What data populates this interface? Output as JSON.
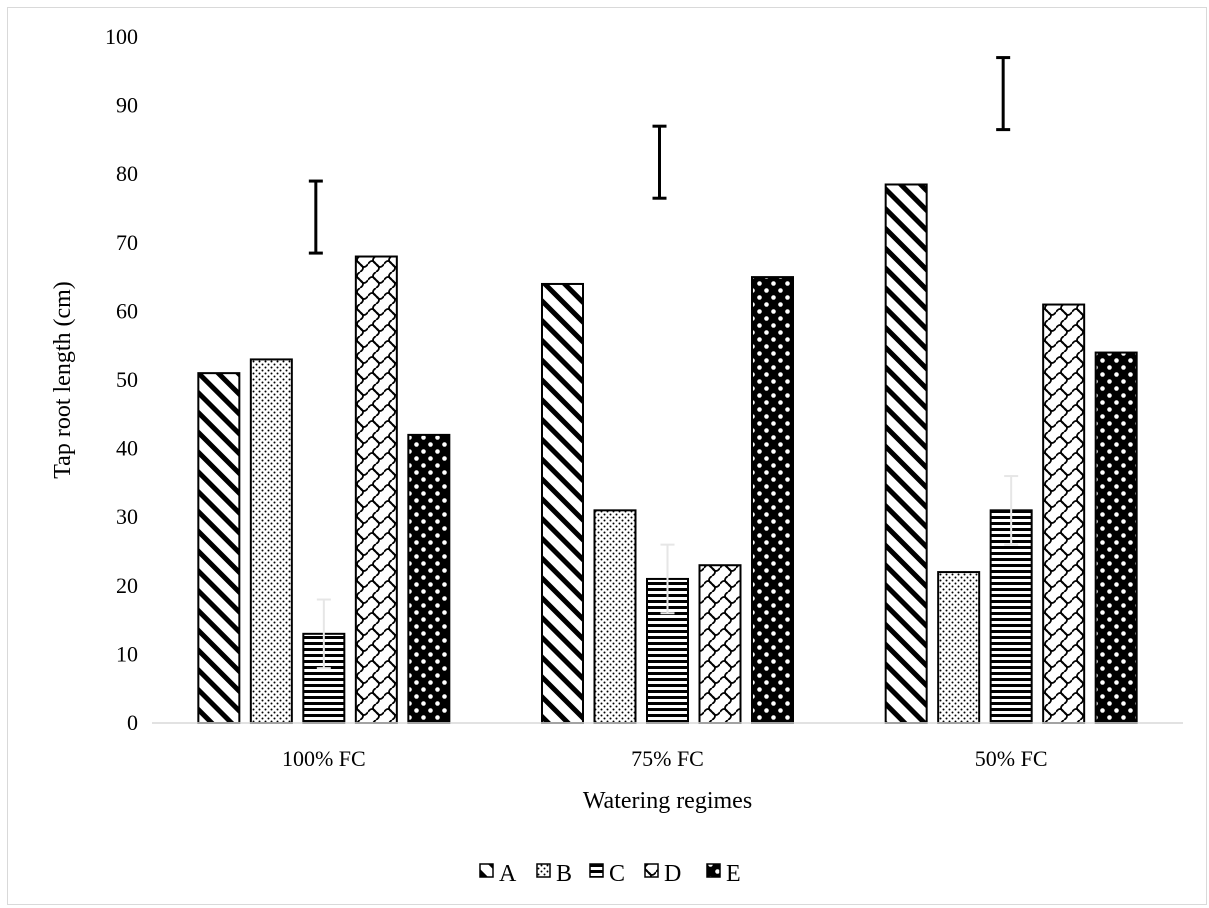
{
  "chart_data": {
    "type": "bar",
    "title": "",
    "xlabel": "Watering regimes",
    "ylabel": "Tap root length (cm)",
    "ylim": [
      0,
      100
    ],
    "yticks": [
      0,
      10,
      20,
      30,
      40,
      50,
      60,
      70,
      80,
      90,
      100
    ],
    "categories": [
      "100% FC",
      "75% FC",
      "50% FC"
    ],
    "series": [
      {
        "name": "A",
        "values": [
          51,
          64,
          78.5
        ],
        "pattern": "diagonal-stripes"
      },
      {
        "name": "B",
        "values": [
          53,
          31,
          22
        ],
        "pattern": "fine-dots"
      },
      {
        "name": "C",
        "values": [
          13,
          21,
          31
        ],
        "pattern": "horizontal-stripes"
      },
      {
        "name": "D",
        "values": [
          68,
          23,
          61
        ],
        "pattern": "wave-lattice"
      },
      {
        "name": "E",
        "values": [
          42,
          65,
          54
        ],
        "pattern": "dot-grid"
      }
    ],
    "lsd_bars": [
      {
        "category": "100% FC",
        "low": 68.5,
        "high": 79
      },
      {
        "category": "75% FC",
        "low": 76.5,
        "high": 87
      },
      {
        "category": "50% FC",
        "low": 86.5,
        "high": 97
      }
    ],
    "series_c_error": [
      {
        "category": "100% FC",
        "low": 8,
        "high": 18
      },
      {
        "category": "75% FC",
        "low": 16,
        "high": 26
      },
      {
        "category": "50% FC",
        "low": 26,
        "high": 36
      }
    ],
    "legend_position": "bottom",
    "grid": false,
    "colors": {
      "bar_edge": "#000000",
      "axis_line": "#d9d9d9",
      "error_bar": "#e6e6e6"
    }
  }
}
